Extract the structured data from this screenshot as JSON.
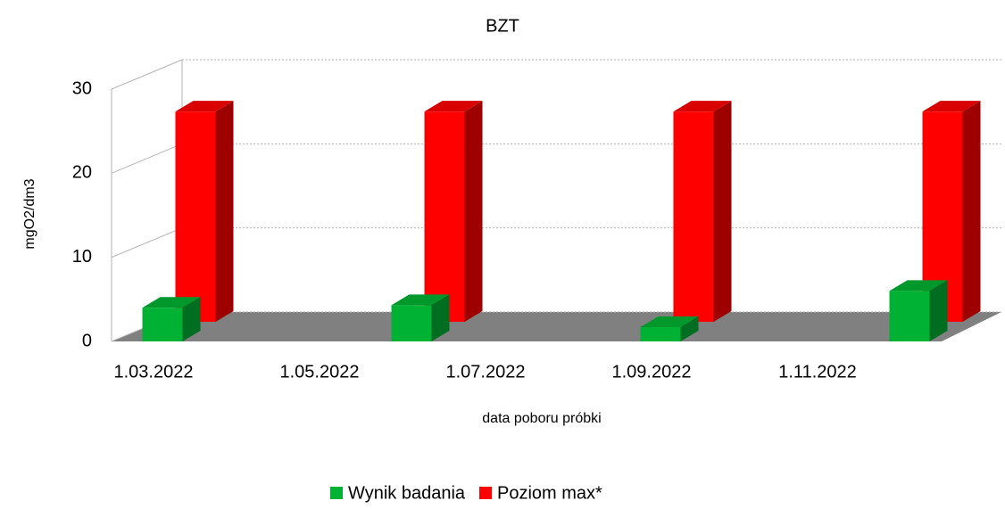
{
  "chart_data": {
    "type": "bar3d",
    "title": "BZT",
    "y_label": "mgO2/dm3",
    "x_label": "data poboru próbki",
    "categories": [
      null,
      null,
      null,
      null
    ],
    "xticks": [
      "1.03.2022",
      "1.05.2022",
      "1.07.2022",
      "1.09.2022",
      "1.11.2022"
    ],
    "series": [
      {
        "name": "Wynik badania",
        "color": "#00b233",
        "values": [
          4,
          4.3,
          1.7,
          6
        ]
      },
      {
        "name": "Poziom max*",
        "color": "#ff0000",
        "values": [
          25,
          25,
          25,
          25
        ]
      }
    ],
    "ylim": [
      0,
      30
    ],
    "yticks": [
      0,
      10,
      20,
      30
    ],
    "grid": true,
    "legend": "bottom"
  }
}
